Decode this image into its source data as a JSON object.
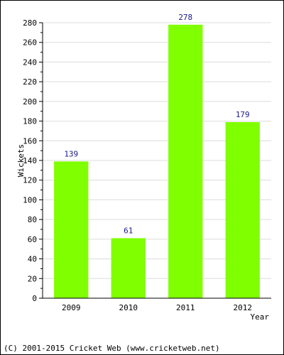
{
  "chart_data": {
    "type": "bar",
    "categories": [
      "2009",
      "2010",
      "2011",
      "2012"
    ],
    "values": [
      139,
      61,
      278,
      179
    ],
    "ylabel": "Wickets",
    "xlabel": "Year",
    "ylim": [
      0,
      280
    ],
    "yticks": [
      0,
      20,
      40,
      60,
      80,
      100,
      120,
      140,
      160,
      180,
      200,
      220,
      240,
      260,
      280
    ],
    "grid": true,
    "bar_color": "#7fff00",
    "value_label_color": "#1a1a8c"
  },
  "footer": "(C) 2001-2015 Cricket Web (www.cricketweb.net)"
}
